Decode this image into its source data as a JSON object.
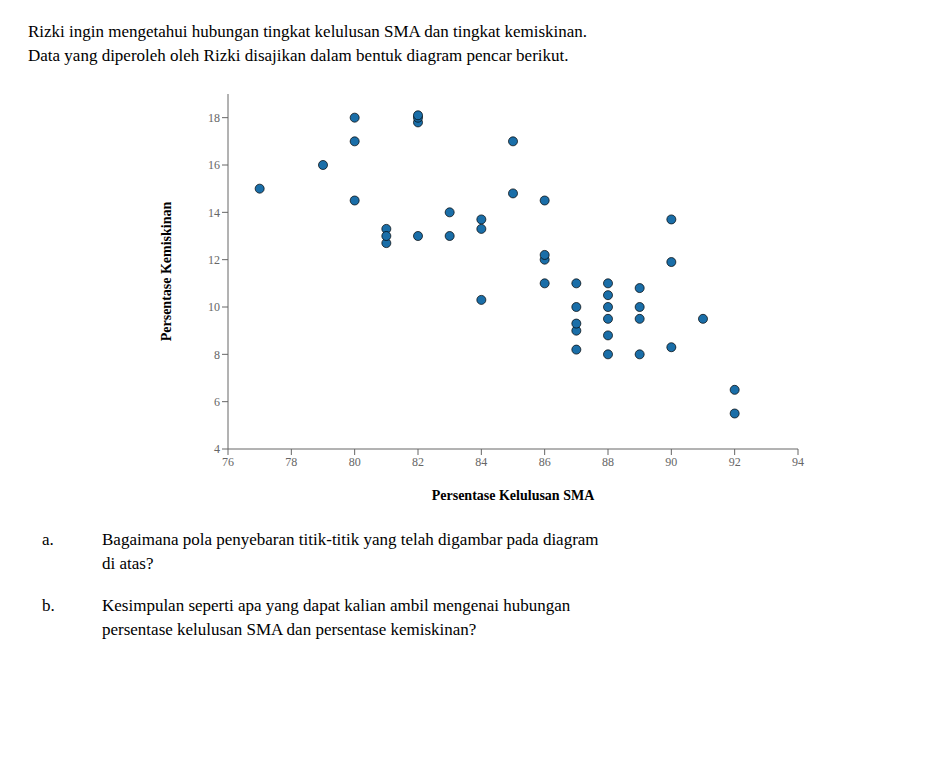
{
  "chart_data": {
    "type": "scatter",
    "title": "Rizki ingin mengetahui hubungan tingkat kelulusan SMA dan tingkat kemiskinan.",
    "subtitle": "Data yang diperoleh oleh Rizki disajikan dalam bentuk diagram pencar berikut.",
    "x": [
      77,
      79,
      80,
      80,
      80,
      81,
      81,
      81,
      82,
      82,
      82,
      82,
      83,
      83,
      84,
      84,
      84,
      85,
      85,
      86,
      86,
      86,
      86,
      87,
      87,
      87,
      87,
      87,
      88,
      88,
      88,
      88,
      88,
      88,
      89,
      89,
      89,
      89,
      90,
      90,
      90,
      91,
      92,
      92
    ],
    "values": [
      15,
      16,
      14.5,
      17,
      18,
      12.7,
      13.3,
      13,
      13,
      17.8,
      18,
      18.1,
      13,
      14,
      13.3,
      13.7,
      10.3,
      14.8,
      17,
      12,
      12.2,
      14.5,
      11,
      9,
      8.2,
      9.3,
      10,
      11,
      8,
      8.8,
      9.5,
      10,
      10.5,
      11,
      9.5,
      10,
      10.8,
      8,
      8.3,
      13.7,
      11.9,
      9.5,
      6.5,
      5.5
    ],
    "color": "#1a6ea8",
    "x_label": "Persentase Kelulusan SMA",
    "y_label": "Persentase Kemiskinan",
    "xlim": [
      76,
      94
    ],
    "ylim": [
      4,
      19
    ],
    "xticks": [
      76,
      78,
      80,
      82,
      84,
      86,
      88,
      90,
      92,
      94
    ],
    "yticks": [
      4,
      6,
      8,
      10,
      12,
      14,
      16,
      18
    ],
    "grid": false,
    "annotations": [
      {
        "label": "a.",
        "text": [
          "Bagaimana pola penyebaran titik-titik yang telah digambar pada diagram",
          "di atas?"
        ]
      },
      {
        "label": "b.",
        "text": [
          "Kesimpulan seperti apa yang dapat kalian ambil mengenai hubungan",
          "persentase kelulusan SMA dan persentase kemiskinan?"
        ]
      }
    ]
  }
}
